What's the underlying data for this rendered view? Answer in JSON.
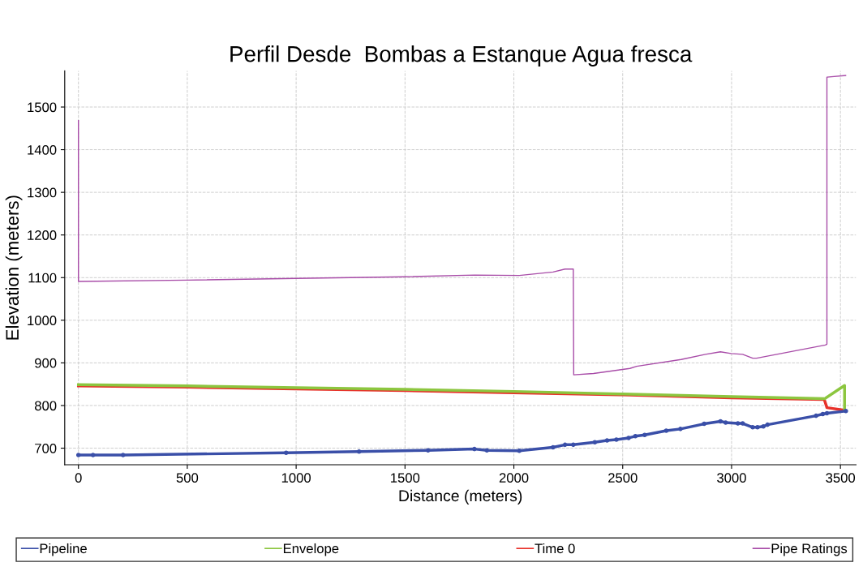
{
  "chart_data": {
    "type": "line",
    "title": "Perfil Desde  Bombas a Estanque Agua fresca",
    "xlabel": "Distance (meters)",
    "ylabel": "Elevation (meters)",
    "xlim": [
      -63,
      3572
    ],
    "ylim": [
      661,
      1585
    ],
    "xticks": [
      0,
      500,
      1000,
      1500,
      2000,
      2500,
      3000,
      3500
    ],
    "yticks": [
      700,
      800,
      900,
      1000,
      1100,
      1200,
      1300,
      1400,
      1500
    ],
    "grid": true,
    "legend": "bottom",
    "series": [
      {
        "name": "Pipeline",
        "color": "#3a4fa8",
        "marker": "circle",
        "x": [
          0,
          67,
          205,
          954,
          1289,
          1606,
          1819,
          1876,
          2025,
          2180,
          2235,
          2273,
          2372,
          2428,
          2471,
          2527,
          2558,
          2601,
          2700,
          2765,
          2874,
          2949,
          2973,
          3029,
          3051,
          3097,
          3119,
          3146,
          3165,
          3388,
          3419,
          3438,
          3525
        ],
        "values": [
          684,
          684,
          684,
          689,
          692,
          695,
          698,
          695,
          694,
          702,
          708,
          708,
          714,
          718,
          720,
          724,
          728,
          731,
          741,
          745,
          757,
          763,
          760,
          758,
          758,
          749,
          749,
          751,
          755,
          776,
          780,
          782,
          787
        ]
      },
      {
        "name": "Envelope",
        "color": "#8cc63f",
        "x": [
          0,
          500,
          1000,
          1500,
          2000,
          2500,
          3000,
          3428,
          3519,
          3519
        ],
        "values": [
          849,
          846,
          842,
          838,
          833,
          827,
          821,
          816,
          847,
          792
        ]
      },
      {
        "name": "Time 0",
        "color": "#e8312a",
        "x": [
          0,
          500,
          1000,
          1500,
          2000,
          2500,
          3000,
          3426,
          3438,
          3519
        ],
        "values": [
          846,
          843,
          839,
          835,
          830,
          825,
          818,
          814,
          795,
          789
        ]
      },
      {
        "name": "Pipe Ratings",
        "color": "#a84ca8",
        "x": [
          0,
          0,
          0,
          500,
          1000,
          1500,
          1820,
          2025,
          2180,
          2235,
          2273,
          2275,
          2366,
          2533,
          2564,
          2768,
          2880,
          2949,
          2998,
          3051,
          3097,
          3115,
          3431,
          3438,
          3438,
          3524
        ],
        "values": [
          1468,
          1091,
          1091,
          1094,
          1098,
          1102,
          1106,
          1105,
          1113,
          1120,
          1120,
          872,
          875,
          887,
          892,
          908,
          920,
          926,
          922,
          920,
          911,
          911,
          942,
          944,
          1570,
          1574
        ]
      }
    ]
  }
}
